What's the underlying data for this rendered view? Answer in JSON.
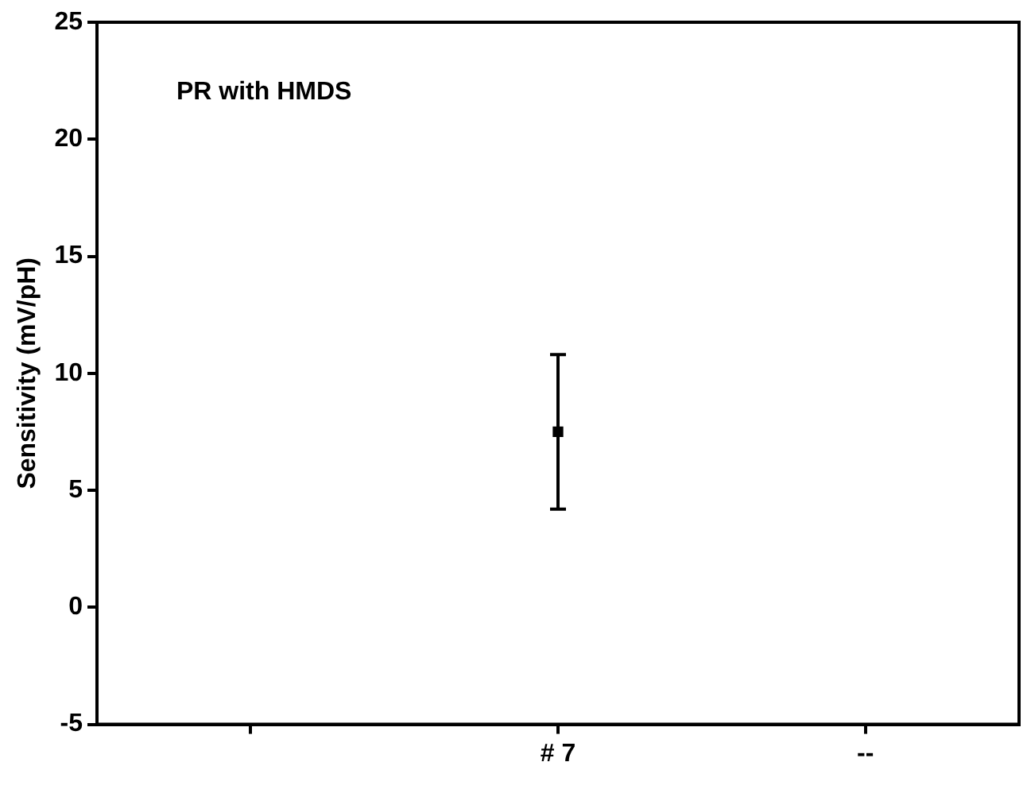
{
  "chart_data": {
    "type": "scatter",
    "ylabel": "Sensitivity (mV/pH)",
    "annotations": [
      "PR with HMDS"
    ],
    "categories": [
      null,
      "# 7",
      "--"
    ],
    "values": [
      null,
      7.5,
      null
    ],
    "errors": [
      null,
      [
        4.2,
        10.8
      ],
      null
    ],
    "color": "#000000",
    "marker": "square",
    "ylim": [
      -5,
      25
    ],
    "yticks": [
      -5,
      0,
      5,
      10,
      15,
      20,
      25
    ],
    "grid": false,
    "legend": false
  }
}
